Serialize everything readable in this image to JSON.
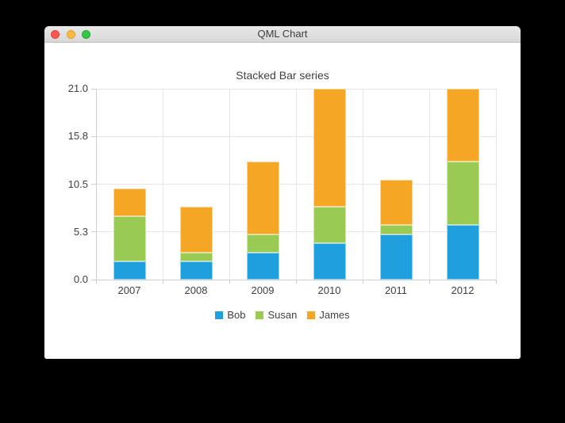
{
  "window": {
    "title": "QML Chart",
    "controls": {
      "close_color": "#fc5753",
      "minimize_color": "#fdbc40",
      "zoom_color": "#33c748"
    }
  },
  "chart_data": {
    "type": "bar",
    "stacked": true,
    "title": "Stacked Bar series",
    "categories": [
      "2007",
      "2008",
      "2009",
      "2010",
      "2011",
      "2012"
    ],
    "series": [
      {
        "name": "Bob",
        "color": "#209fdf",
        "values": [
          2,
          2,
          3,
          4,
          5,
          6
        ]
      },
      {
        "name": "Susan",
        "color": "#99ca53",
        "values": [
          5,
          1,
          2,
          4,
          1,
          7
        ]
      },
      {
        "name": "James",
        "color": "#f6a625",
        "values": [
          3,
          5,
          8,
          13,
          5,
          8
        ]
      }
    ],
    "ylim": [
      0,
      21
    ],
    "yticks": [
      {
        "label": "0.0",
        "value": 0
      },
      {
        "label": "5.3",
        "value": 5.25
      },
      {
        "label": "10.5",
        "value": 10.5
      },
      {
        "label": "15.8",
        "value": 15.75
      },
      {
        "label": "21.0",
        "value": 21
      }
    ],
    "xlabel": "",
    "ylabel": "",
    "grid": true,
    "legend_position": "bottom",
    "colors": {
      "grid": "#e6e6e6",
      "axis": "#cfcfcf",
      "label": "#404040"
    }
  }
}
